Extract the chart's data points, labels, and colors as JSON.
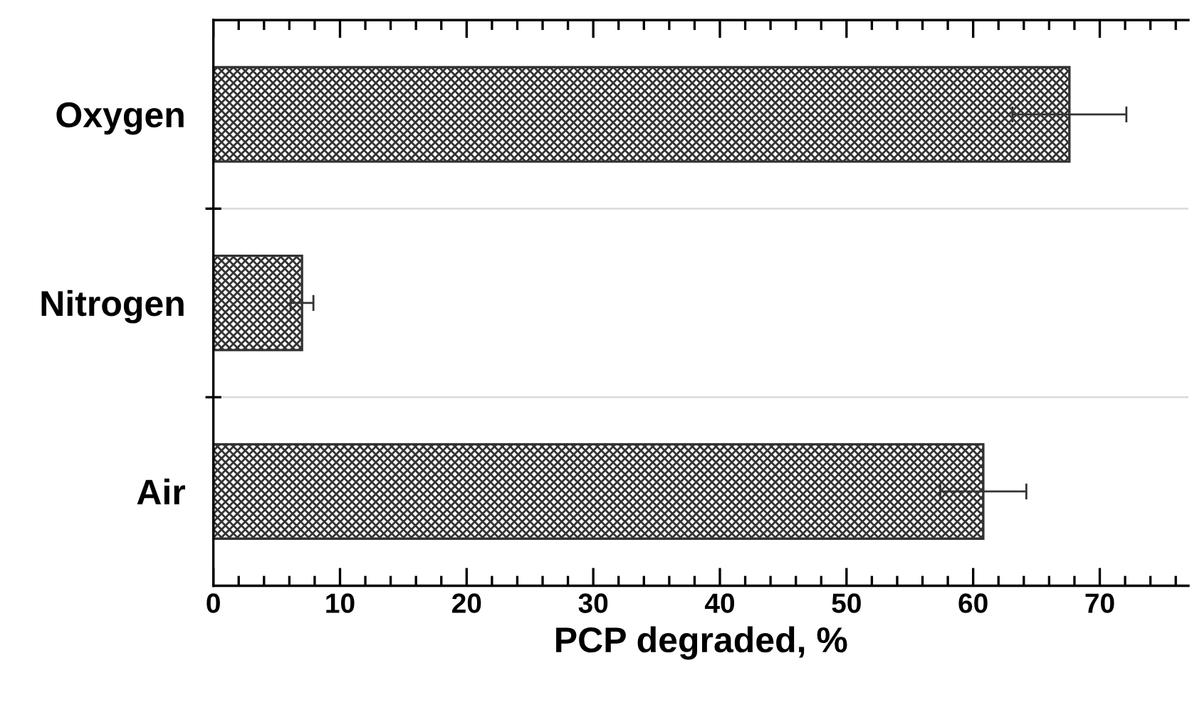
{
  "chart_data": {
    "type": "bar",
    "orientation": "horizontal",
    "categories": [
      "Oxygen",
      "Nitrogen",
      "Air"
    ],
    "values": [
      67.6,
      7.0,
      60.8
    ],
    "errors": [
      4.5,
      0.9,
      3.4
    ],
    "color": "#333333",
    "xlabel": "PCP degraded, %",
    "xlim": [
      0,
      77
    ],
    "xticks": [
      0,
      10,
      20,
      30,
      40,
      50,
      60,
      70
    ],
    "grid": "y"
  }
}
